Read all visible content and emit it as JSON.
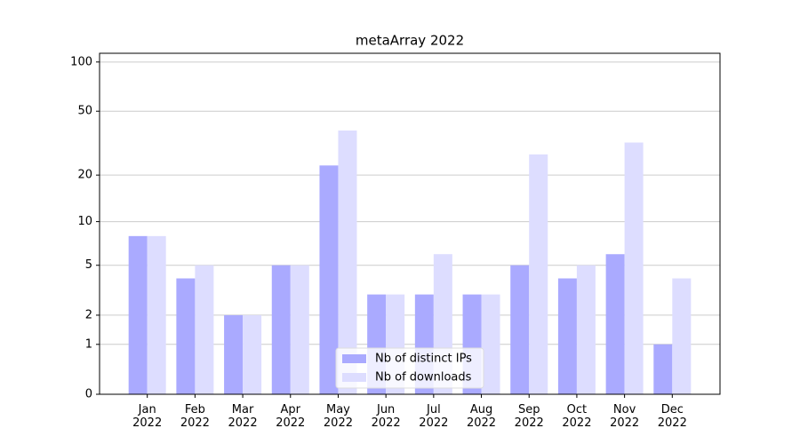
{
  "chart_data": {
    "type": "bar",
    "title": "metaArray 2022",
    "categories": [
      "Jan\n2022",
      "Feb\n2022",
      "Mar\n2022",
      "Apr\n2022",
      "May\n2022",
      "Jun\n2022",
      "Jul\n2022",
      "Aug\n2022",
      "Sep\n2022",
      "Oct\n2022",
      "Nov\n2022",
      "Dec\n2022"
    ],
    "series": [
      {
        "name": "Nb of distinct IPs",
        "color": "#aaaaff",
        "values": [
          8,
          4,
          2,
          5,
          23,
          3,
          3,
          3,
          5,
          4,
          6,
          1
        ]
      },
      {
        "name": "Nb of downloads",
        "color": "#ddddff",
        "values": [
          8,
          5,
          2,
          5,
          38,
          3,
          6,
          3,
          27,
          5,
          32,
          4
        ]
      }
    ],
    "yscale": "log1p",
    "ylim": [
      0,
      113
    ],
    "yticks": [
      0,
      1,
      2,
      5,
      10,
      20,
      50,
      100
    ],
    "grid": true,
    "legend": "lower center"
  }
}
